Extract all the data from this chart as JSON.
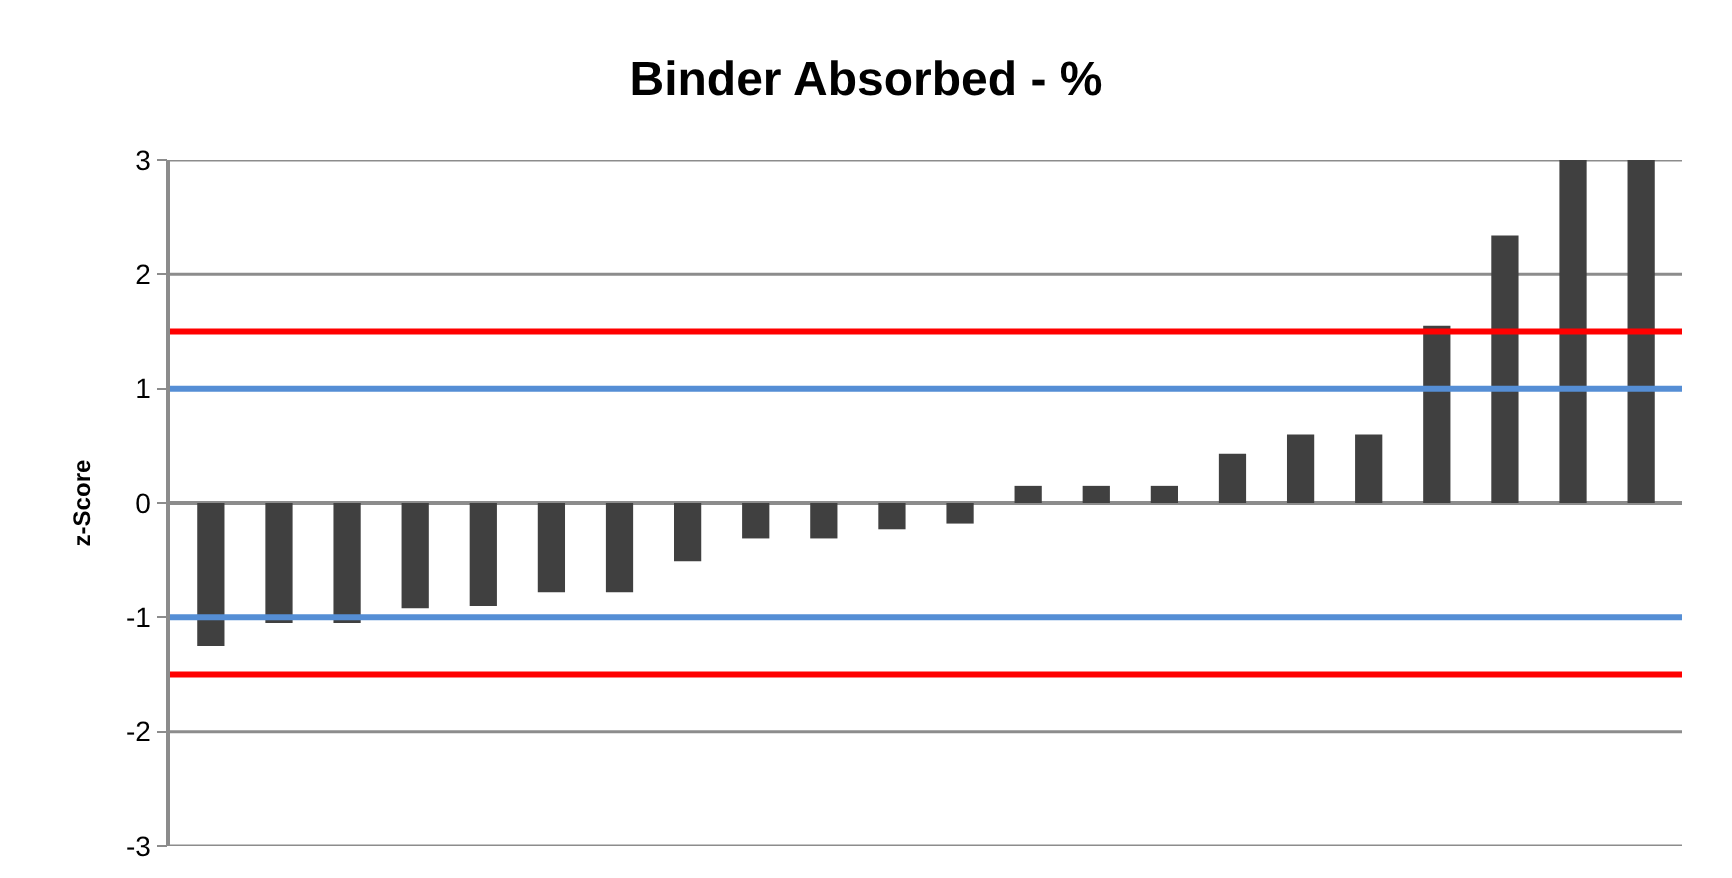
{
  "chart_data": {
    "type": "bar",
    "title": "Binder Absorbed - %",
    "ylabel": "z-Score",
    "categories": [
      null,
      null,
      null,
      null,
      null,
      null,
      null,
      null,
      null,
      null,
      null,
      null,
      null,
      null,
      null,
      null,
      null,
      null,
      null,
      null,
      null,
      null
    ],
    "values": [
      -1.25,
      -1.05,
      -1.05,
      -0.92,
      -0.9,
      -0.78,
      -0.78,
      -0.51,
      -0.31,
      -0.31,
      -0.23,
      -0.18,
      0.15,
      0.15,
      0.15,
      0.43,
      0.6,
      0.6,
      1.55,
      2.34,
      3,
      3
    ],
    "color": "#404040",
    "ylim": [
      -3,
      3
    ],
    "yticks": [
      -3,
      -2,
      -1,
      0,
      1,
      2,
      3
    ],
    "grid": "y",
    "ref_lines": [
      {
        "axis": "y",
        "value": 1.5,
        "color": "#ff0000"
      },
      {
        "axis": "y",
        "value": -1.5,
        "color": "#ff0000"
      },
      {
        "axis": "y",
        "value": 1,
        "color": "#558ed5"
      },
      {
        "axis": "y",
        "value": -1,
        "color": "#558ed5"
      }
    ]
  }
}
